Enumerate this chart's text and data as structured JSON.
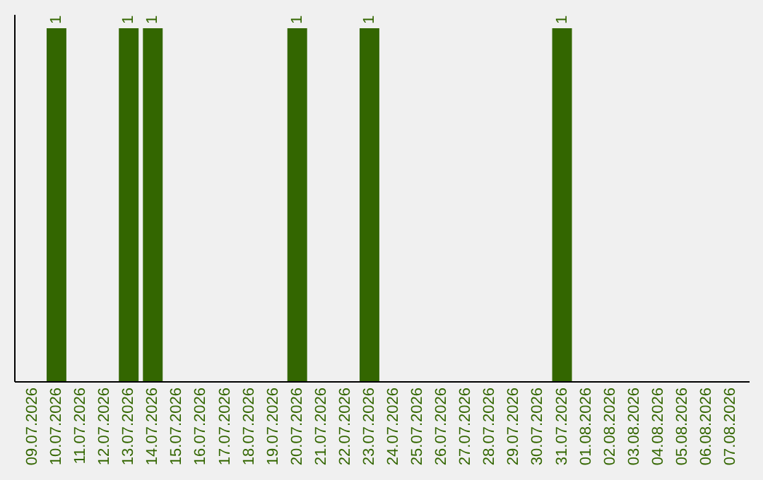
{
  "chart_data": {
    "type": "bar",
    "categories": [
      "09.07.2026",
      "10.07.2026",
      "11.07.2026",
      "12.07.2026",
      "13.07.2026",
      "14.07.2026",
      "15.07.2026",
      "16.07.2026",
      "17.07.2026",
      "18.07.2026",
      "19.07.2026",
      "20.07.2026",
      "21.07.2026",
      "22.07.2026",
      "23.07.2026",
      "24.07.2026",
      "25.07.2026",
      "26.07.2026",
      "27.07.2026",
      "28.07.2026",
      "29.07.2026",
      "30.07.2026",
      "31.07.2026",
      "01.08.2026",
      "02.08.2026",
      "03.08.2026",
      "04.08.2026",
      "05.08.2026",
      "06.08.2026",
      "07.08.2026"
    ],
    "values": [
      0,
      1,
      0,
      0,
      1,
      1,
      0,
      0,
      0,
      0,
      0,
      1,
      0,
      0,
      1,
      0,
      0,
      0,
      0,
      0,
      0,
      0,
      1,
      0,
      0,
      0,
      0,
      0,
      0,
      0
    ],
    "value_labels": [
      null,
      "1",
      null,
      null,
      "1",
      "1",
      null,
      null,
      null,
      null,
      null,
      "1",
      null,
      null,
      "1",
      null,
      null,
      null,
      null,
      null,
      null,
      null,
      "1",
      null,
      null,
      null,
      null,
      null,
      null,
      null
    ],
    "color": "#336600"
  }
}
